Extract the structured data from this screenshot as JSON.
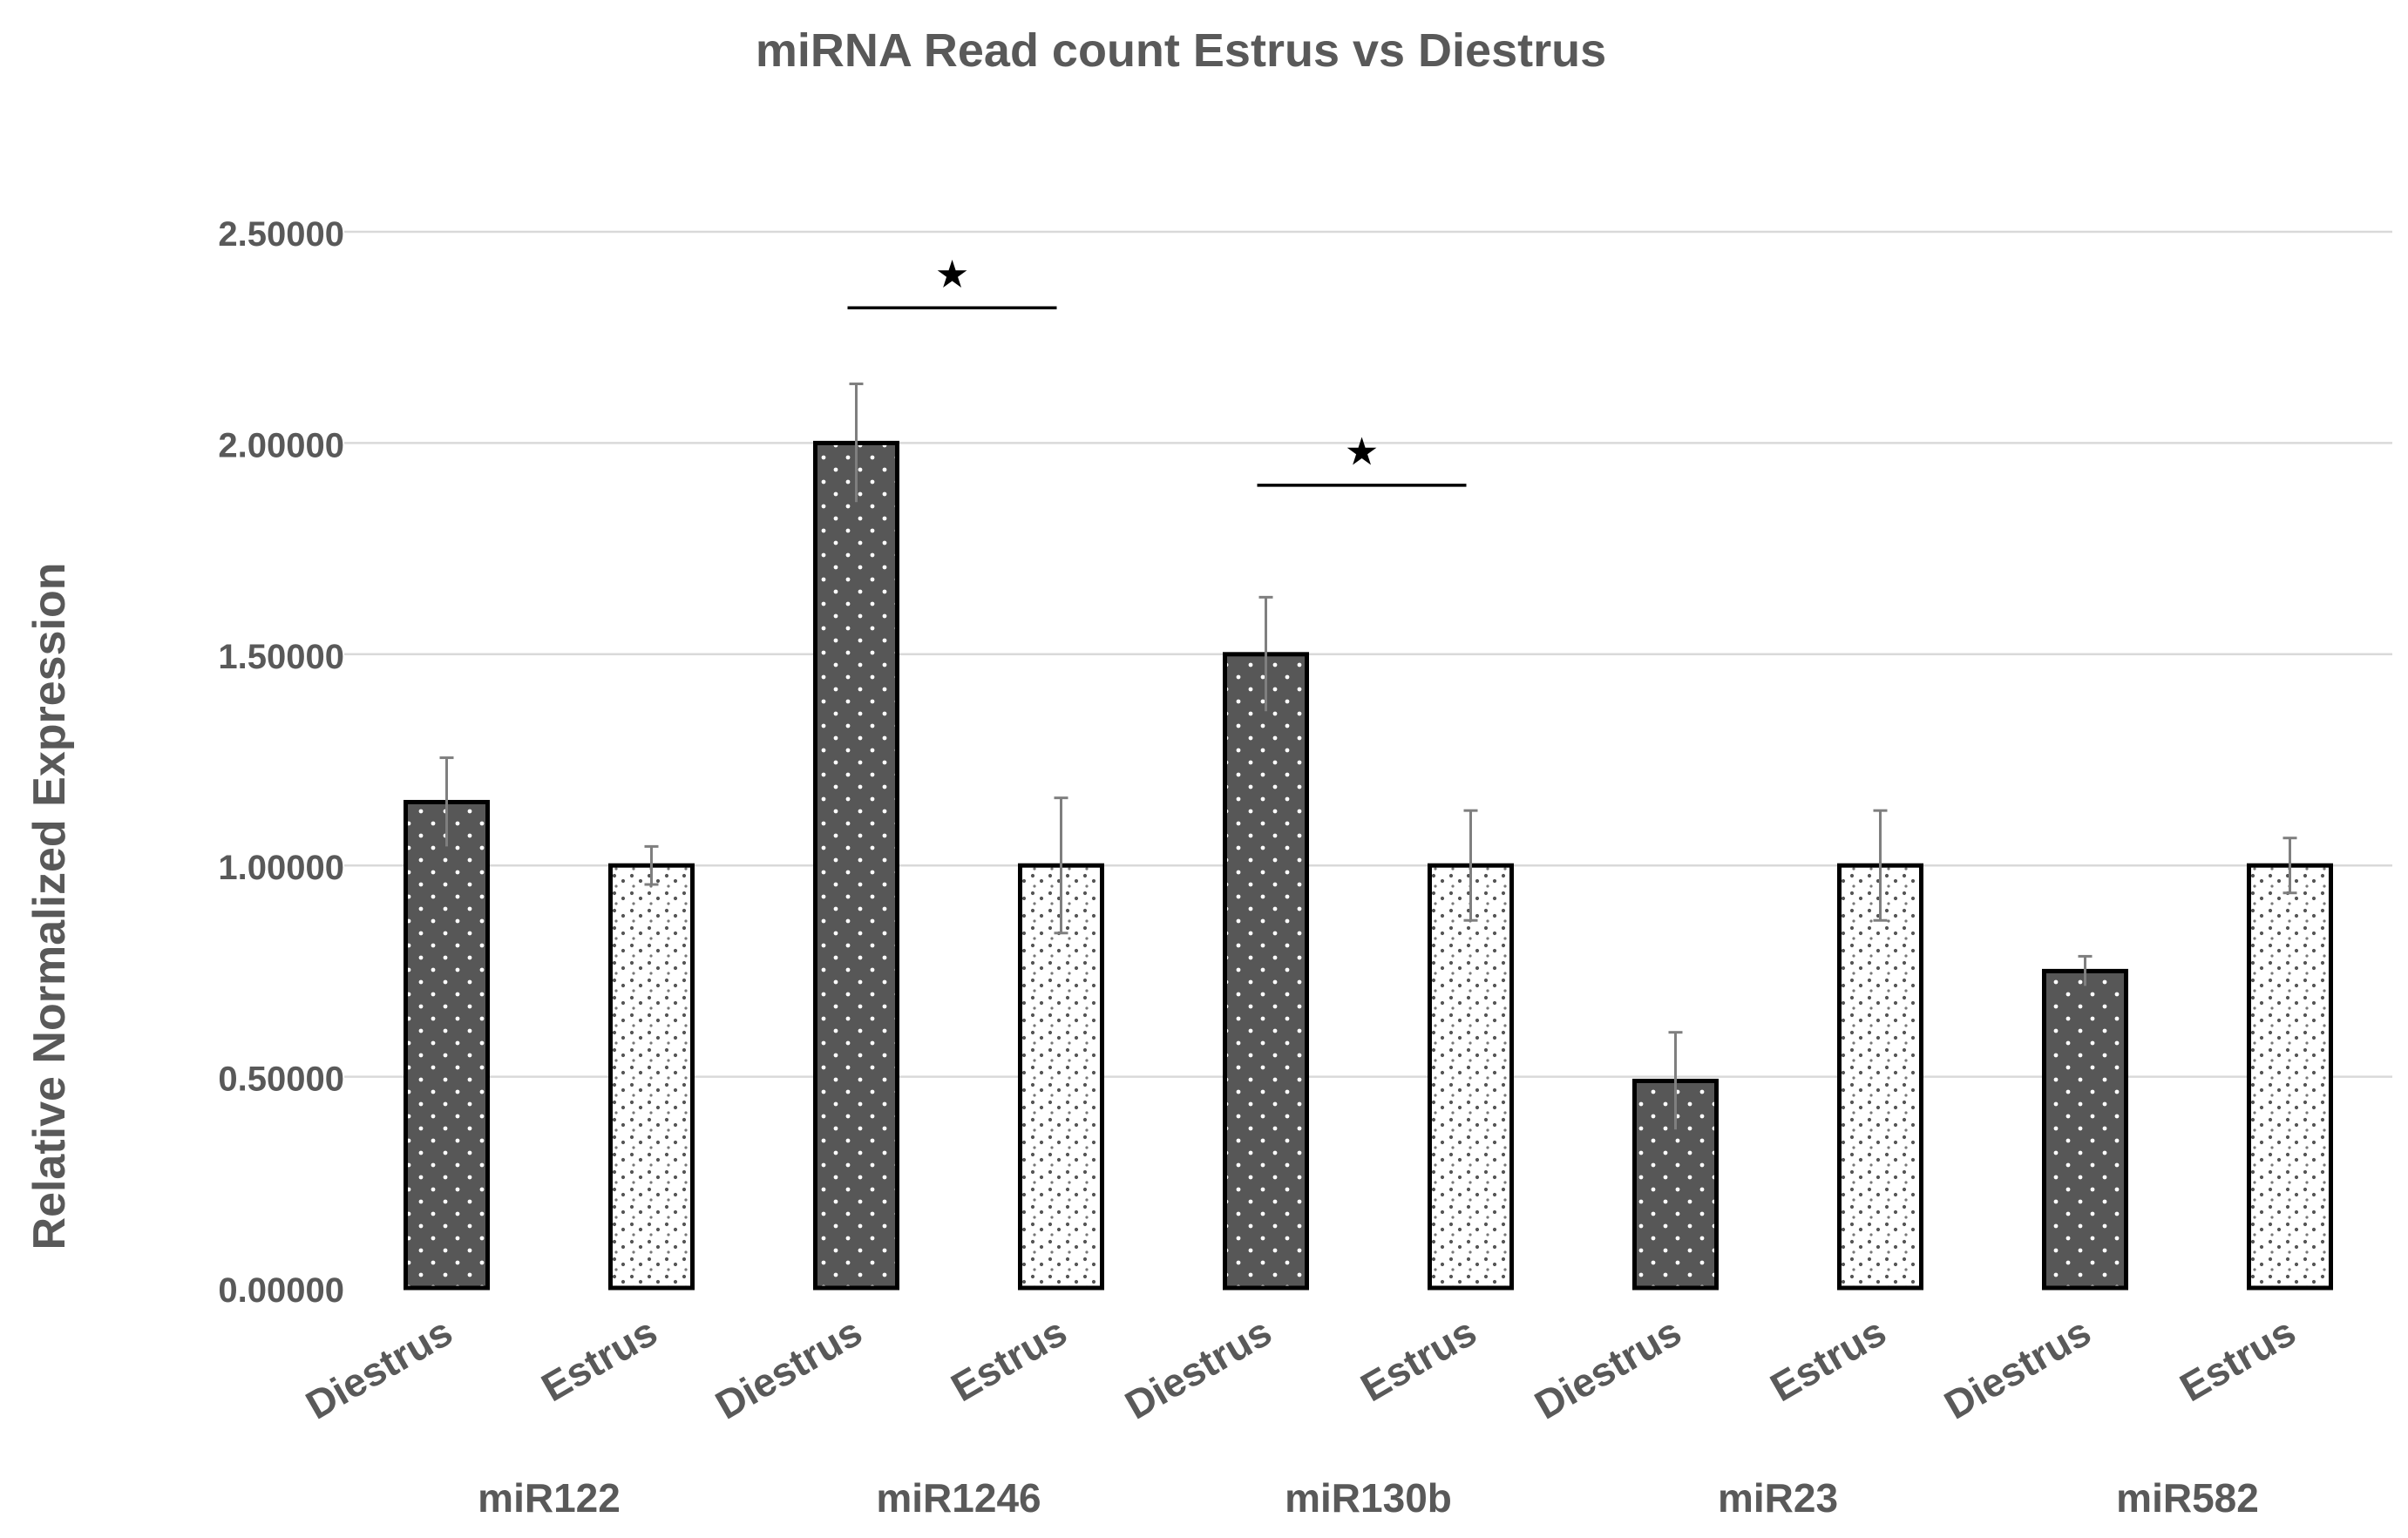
{
  "chart_data": {
    "type": "bar",
    "title": "miRNA Read count Estrus vs Diestrus",
    "xlabel": "",
    "ylabel": "Relative Normalized Expression",
    "ylim": [
      0,
      2.5
    ],
    "yticks": [
      0,
      0.5,
      1.0,
      1.5,
      2.0,
      2.5
    ],
    "ytick_labels": [
      "0.00000",
      "0.50000",
      "1.00000",
      "1.50000",
      "2.00000",
      "2.50000"
    ],
    "grid": true,
    "legend": "none",
    "groups": [
      "miR122",
      "miR1246",
      "miR130b",
      "miR23",
      "miR582"
    ],
    "bars": [
      {
        "group": "miR122",
        "category": "Diestrus",
        "value": 1.15,
        "error": 0.105,
        "fill": "dark"
      },
      {
        "group": "miR122",
        "category": "Estrus",
        "value": 1.0,
        "error": 0.045,
        "fill": "light"
      },
      {
        "group": "miR1246",
        "category": "Diestrus",
        "value": 2.0,
        "error": 0.14,
        "fill": "dark"
      },
      {
        "group": "miR1246",
        "category": "Estrus",
        "value": 1.0,
        "error": 0.16,
        "fill": "light"
      },
      {
        "group": "miR130b",
        "category": "Diestrus",
        "value": 1.5,
        "error": 0.135,
        "fill": "dark"
      },
      {
        "group": "miR130b",
        "category": "Estrus",
        "value": 1.0,
        "error": 0.13,
        "fill": "light"
      },
      {
        "group": "miR23",
        "category": "Diestrus",
        "value": 0.49,
        "error": 0.115,
        "fill": "dark"
      },
      {
        "group": "miR23",
        "category": "Estrus",
        "value": 1.0,
        "error": 0.13,
        "fill": "light"
      },
      {
        "group": "miR582",
        "category": "Diestrus",
        "value": 0.75,
        "error": 0.035,
        "fill": "dark"
      },
      {
        "group": "miR582",
        "category": "Estrus",
        "value": 1.0,
        "error": 0.065,
        "fill": "light"
      }
    ],
    "significance": [
      {
        "group": "miR1246",
        "marker": "★",
        "line_y": 2.32,
        "star_y": 2.4
      },
      {
        "group": "miR130b",
        "marker": "★",
        "line_y": 1.9,
        "star_y": 1.98
      }
    ],
    "colors": {
      "dark_bar": "#575757",
      "light_bar": "#ffffff",
      "dot": "#ffffff",
      "pattern_dot": "#555555",
      "bar_outline": "#000000",
      "grid": "#d9d9d9",
      "text": "#595959"
    }
  }
}
